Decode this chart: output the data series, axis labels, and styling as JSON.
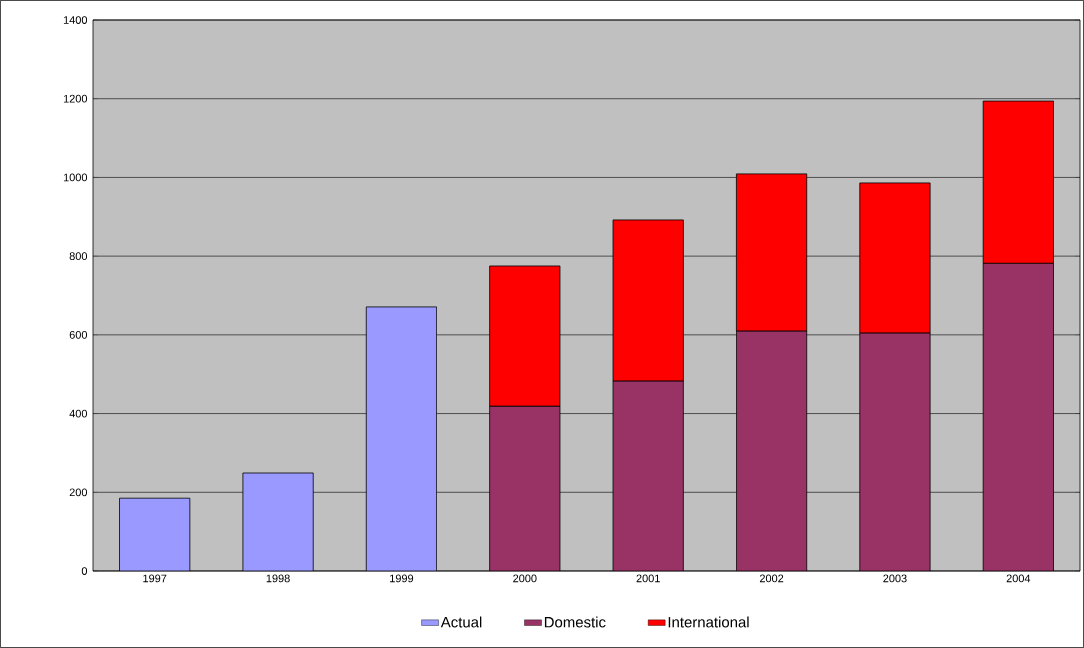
{
  "chart_data": {
    "type": "bar",
    "stacked": true,
    "categories": [
      "1997",
      "1998",
      "1999",
      "2000",
      "2001",
      "2002",
      "2003",
      "2004"
    ],
    "series": [
      {
        "name": "Actual",
        "color": "#9999ff",
        "values": [
          185,
          249,
          671,
          null,
          null,
          null,
          null,
          null
        ]
      },
      {
        "name": "Domestic",
        "color": "#993366",
        "values": [
          null,
          null,
          null,
          419,
          483,
          610,
          605,
          782
        ]
      },
      {
        "name": "International",
        "color": "#ff0000",
        "values": [
          null,
          null,
          null,
          356,
          409,
          399,
          381,
          412
        ]
      }
    ],
    "ylim": [
      0,
      1400
    ],
    "yticks": [
      0,
      200,
      400,
      600,
      800,
      1000,
      1200,
      1400
    ],
    "grid": "y",
    "legend": "bottom"
  }
}
